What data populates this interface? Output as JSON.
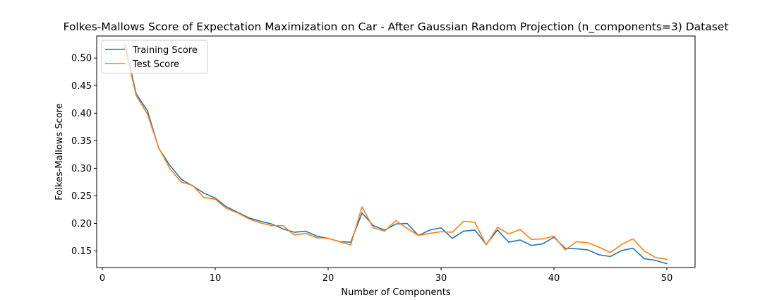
{
  "chart_data": {
    "type": "line",
    "title": "Folkes-Mallows Score of Expectation Maximization on Car - After Gaussian Random Projection (n_components=3) Dataset",
    "xlabel": "Number of Components",
    "ylabel": "Folkes-Mallows Score",
    "xlim": [
      -0.5,
      52.5
    ],
    "ylim": [
      0.12,
      0.54
    ],
    "xticks": [
      0,
      10,
      20,
      30,
      40,
      50
    ],
    "xtick_labels": [
      "0",
      "10",
      "20",
      "30",
      "40",
      "50"
    ],
    "yticks": [
      0.15,
      0.2,
      0.25,
      0.3,
      0.35,
      0.4,
      0.45,
      0.5
    ],
    "ytick_labels": [
      "0.15",
      "0.20",
      "0.25",
      "0.30",
      "0.35",
      "0.40",
      "0.45",
      "0.50"
    ],
    "grid": false,
    "legend_position": "top-left",
    "x": [
      2,
      3,
      4,
      5,
      6,
      7,
      8,
      9,
      10,
      11,
      12,
      13,
      14,
      15,
      16,
      17,
      18,
      19,
      20,
      21,
      22,
      23,
      24,
      25,
      26,
      27,
      28,
      29,
      30,
      31,
      32,
      33,
      34,
      35,
      36,
      37,
      38,
      39,
      40,
      41,
      42,
      43,
      44,
      45,
      46,
      47,
      48,
      49,
      50
    ],
    "series": [
      {
        "name": "Training Score",
        "color": "#1f77b4",
        "values": [
          0.526,
          0.435,
          0.404,
          0.336,
          0.305,
          0.28,
          0.268,
          0.255,
          0.246,
          0.23,
          0.22,
          0.21,
          0.204,
          0.199,
          0.19,
          0.184,
          0.186,
          0.177,
          0.173,
          0.167,
          0.166,
          0.219,
          0.196,
          0.188,
          0.199,
          0.2,
          0.178,
          0.188,
          0.192,
          0.173,
          0.186,
          0.188,
          0.162,
          0.188,
          0.166,
          0.17,
          0.16,
          0.163,
          0.175,
          0.155,
          0.154,
          0.152,
          0.143,
          0.14,
          0.151,
          0.155,
          0.136,
          0.133,
          0.127
        ]
      },
      {
        "name": "Test Score",
        "color": "#ff7f0e",
        "values": [
          0.519,
          0.432,
          0.398,
          0.337,
          0.299,
          0.275,
          0.269,
          0.247,
          0.244,
          0.227,
          0.219,
          0.208,
          0.201,
          0.196,
          0.196,
          0.179,
          0.182,
          0.174,
          0.173,
          0.167,
          0.161,
          0.23,
          0.192,
          0.186,
          0.205,
          0.191,
          0.178,
          0.182,
          0.185,
          0.184,
          0.204,
          0.202,
          0.161,
          0.193,
          0.181,
          0.189,
          0.171,
          0.172,
          0.177,
          0.152,
          0.167,
          0.165,
          0.157,
          0.147,
          0.162,
          0.172,
          0.15,
          0.138,
          0.135
        ]
      }
    ]
  }
}
